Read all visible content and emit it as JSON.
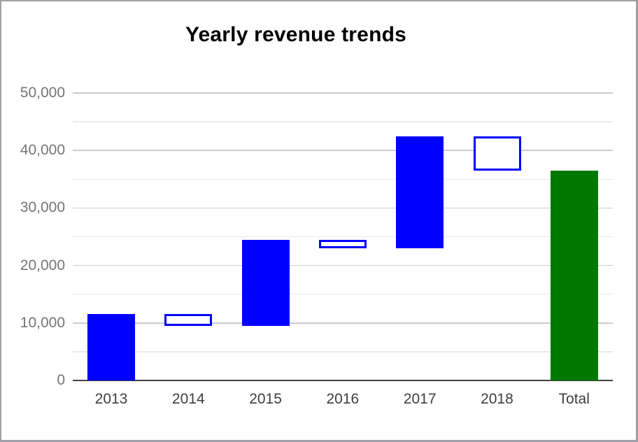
{
  "window": {
    "background": "#ffffff",
    "border_color": "#9fa1a7"
  },
  "chart_data": {
    "type": "waterfall",
    "title": "Yearly revenue trends",
    "categories": [
      "2013",
      "2014",
      "2015",
      "2016",
      "2017",
      "2018",
      "Total"
    ],
    "bars": [
      {
        "category": "2013",
        "from": 0,
        "to": 11500,
        "change": 11500,
        "kind": "increase"
      },
      {
        "category": "2014",
        "from": 11500,
        "to": 9500,
        "change": -2000,
        "kind": "decrease"
      },
      {
        "category": "2015",
        "from": 9500,
        "to": 24500,
        "change": 15000,
        "kind": "increase"
      },
      {
        "category": "2016",
        "from": 24500,
        "to": 23000,
        "change": -1500,
        "kind": "decrease"
      },
      {
        "category": "2017",
        "from": 23000,
        "to": 42500,
        "change": 19500,
        "kind": "increase"
      },
      {
        "category": "2018",
        "from": 42500,
        "to": 36500,
        "change": -6000,
        "kind": "decrease"
      },
      {
        "category": "Total",
        "from": 0,
        "to": 36500,
        "change": 36500,
        "kind": "total"
      }
    ],
    "y_axis": {
      "min": 0,
      "max": 50000,
      "major_step": 10000,
      "minor_step": 5000,
      "tick_labels": [
        "0",
        "10,000",
        "20,000",
        "30,000",
        "40,000",
        "50,000"
      ]
    },
    "x_axis": {
      "labels": [
        "2013",
        "2014",
        "2015",
        "2016",
        "2017",
        "2018",
        "Total"
      ]
    },
    "legend": "none",
    "grid": true,
    "colors": {
      "increase_fill": "#0000ff",
      "decrease_fill": "#ffffff",
      "decrease_border": "#0000ff",
      "total_fill": "#007800",
      "major_gridline": "#cccccc",
      "minor_gridline": "#e9e9e9",
      "axis_line": "#424242",
      "y_label_color": "#757575",
      "x_label_color": "#3c4043",
      "title_color": "#000000"
    }
  }
}
